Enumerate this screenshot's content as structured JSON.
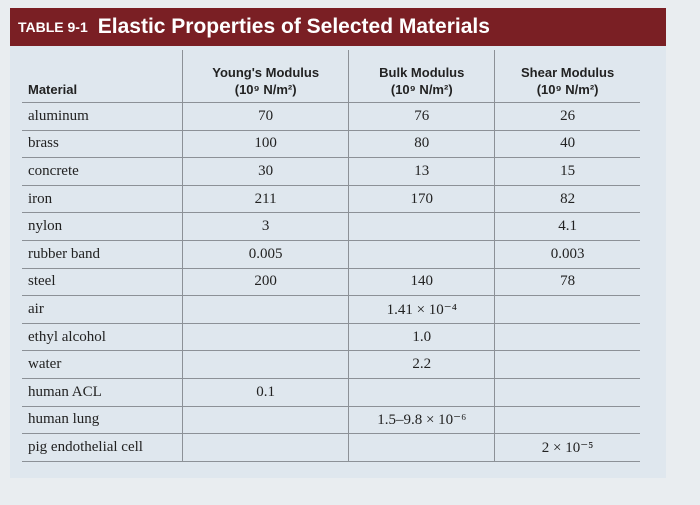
{
  "header": {
    "label": "TABLE 9-1",
    "title": "Elastic Properties of Selected Materials"
  },
  "table": {
    "columns": [
      {
        "name": "Material"
      },
      {
        "name": "Young's Modulus",
        "unit": "(10⁹ N/m²)"
      },
      {
        "name": "Bulk Modulus",
        "unit": "(10⁹ N/m²)"
      },
      {
        "name": "Shear Modulus",
        "unit": "(10⁹ N/m²)"
      }
    ],
    "rows": [
      [
        "aluminum",
        "70",
        "76",
        "26"
      ],
      [
        "brass",
        "100",
        "80",
        "40"
      ],
      [
        "concrete",
        "30",
        "13",
        "15"
      ],
      [
        "iron",
        "211",
        "170",
        "82"
      ],
      [
        "nylon",
        "3",
        null,
        "4.1"
      ],
      [
        "rubber band",
        "0.005",
        null,
        "0.003"
      ],
      [
        "steel",
        "200",
        "140",
        "78"
      ],
      [
        "air",
        null,
        "1.41 × 10⁻⁴",
        null
      ],
      [
        "ethyl alcohol",
        null,
        "1.0",
        null
      ],
      [
        "water",
        null,
        "2.2",
        null
      ],
      [
        "human ACL",
        "0.1",
        null,
        null
      ],
      [
        "human lung",
        null,
        "1.5–9.8 × 10⁻⁶",
        null
      ],
      [
        "pig endothelial cell",
        null,
        null,
        "2 × 10⁻⁵"
      ]
    ]
  }
}
